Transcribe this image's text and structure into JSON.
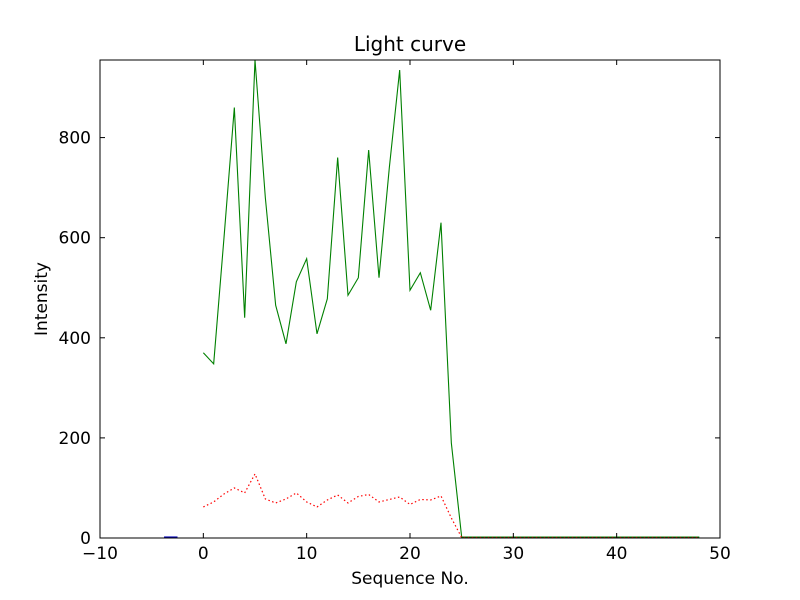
{
  "chart_data": {
    "type": "line",
    "title": "Light curve",
    "xlabel": "Sequence No.",
    "ylabel": "Intensity",
    "xlim": [
      -10,
      50
    ],
    "ylim": [
      0,
      955
    ],
    "xticks": [
      -10,
      0,
      10,
      20,
      30,
      40,
      50
    ],
    "xtick_labels": [
      "−10",
      "0",
      "10",
      "20",
      "30",
      "40",
      "50"
    ],
    "yticks": [
      0,
      200,
      400,
      600,
      800
    ],
    "ytick_labels": [
      "0",
      "200",
      "400",
      "600",
      "800"
    ],
    "grid": false,
    "legend": "none",
    "background_color": "#ffffff",
    "spine_color": "#000000",
    "series": [
      {
        "name": "green-solid",
        "color": "#008000",
        "linestyle": "solid",
        "x": [
          0,
          1,
          2,
          3,
          4,
          5,
          6,
          7,
          8,
          9,
          10,
          11,
          12,
          13,
          14,
          15,
          16,
          17,
          18,
          19,
          20,
          21,
          22,
          23,
          24,
          25,
          26,
          27,
          28,
          29,
          30,
          31,
          32,
          33,
          34,
          35,
          36,
          37,
          38,
          39,
          40,
          41,
          42,
          43,
          44,
          45,
          46,
          47,
          48
        ],
        "y": [
          370,
          348,
          600,
          860,
          440,
          955,
          680,
          465,
          388,
          512,
          558,
          408,
          478,
          760,
          485,
          520,
          775,
          520,
          740,
          935,
          495,
          530,
          455,
          630,
          190,
          2,
          2,
          2,
          2,
          2,
          2,
          2,
          2,
          2,
          2,
          2,
          2,
          2,
          2,
          2,
          2,
          2,
          2,
          2,
          2,
          2,
          2,
          2,
          2
        ]
      },
      {
        "name": "red-dotted",
        "color": "#ff0000",
        "linestyle": "dotted",
        "x": [
          0,
          1,
          2,
          3,
          4,
          5,
          6,
          7,
          8,
          9,
          10,
          11,
          12,
          13,
          14,
          15,
          16,
          17,
          18,
          19,
          20,
          21,
          22,
          23,
          24,
          25,
          26,
          27,
          28,
          29,
          30,
          31,
          32,
          33,
          34,
          35,
          36,
          37,
          38,
          39,
          40,
          41,
          42,
          43,
          44,
          45,
          46,
          47,
          48
        ],
        "y": [
          62,
          72,
          88,
          100,
          90,
          128,
          78,
          70,
          78,
          90,
          72,
          62,
          76,
          86,
          70,
          83,
          87,
          72,
          77,
          82,
          67,
          77,
          76,
          84,
          40,
          1,
          1,
          1,
          1,
          1,
          1,
          1,
          1,
          1,
          1,
          1,
          1,
          1,
          1,
          1,
          1,
          1,
          1,
          1,
          1,
          1,
          1,
          1,
          1
        ]
      },
      {
        "name": "blue-solid",
        "color": "#0000bb",
        "linestyle": "solid",
        "x": [
          -3.8,
          -2.5
        ],
        "y": [
          2,
          2
        ]
      }
    ]
  }
}
